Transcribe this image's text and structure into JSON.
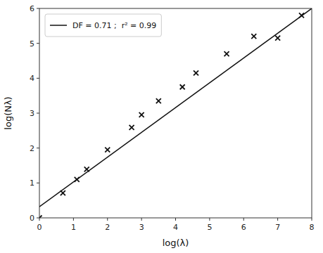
{
  "chart_data": {
    "type": "scatter",
    "xlabel": "log(λ)",
    "ylabel": "log(Nλ)",
    "series": [
      {
        "name": "DF = 0.71 ;  r² = 0.99",
        "type": "line",
        "color": "#111111",
        "x": [
          0,
          8
        ],
        "values": [
          0.32,
          6.0
        ]
      },
      {
        "type": "scatter",
        "marker": "x",
        "color": "#111111",
        "x": [
          0.0,
          0.69,
          1.1,
          1.39,
          2.0,
          2.71,
          3.0,
          3.5,
          4.2,
          4.6,
          5.5,
          6.3,
          7.0,
          7.7
        ],
        "values": [
          0.0,
          0.71,
          1.1,
          1.39,
          1.95,
          2.59,
          2.95,
          3.35,
          3.75,
          4.15,
          4.7,
          5.2,
          5.15,
          5.8
        ]
      }
    ],
    "xlim": [
      0,
      8
    ],
    "ylim": [
      0,
      6
    ],
    "xticks": [
      0,
      1,
      2,
      3,
      4,
      5,
      6,
      7,
      8
    ],
    "yticks": [
      0,
      1,
      2,
      3,
      4,
      5,
      6
    ],
    "grid": false,
    "legend": "upper left"
  }
}
